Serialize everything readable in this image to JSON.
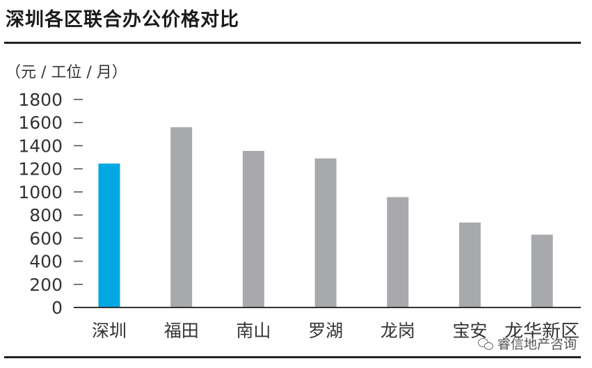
{
  "title": "深圳各区联合办公价格对比",
  "unit": "（元 / 工位 / 月）",
  "watermark": {
    "text": "睿信地产咨询",
    "icon": "wechat-icon"
  },
  "chart_data": {
    "type": "bar",
    "title": "深圳各区联合办公价格对比",
    "ylabel": "（元 / 工位 / 月）",
    "xlabel": "",
    "categories": [
      "深圳",
      "福田",
      "南山",
      "罗湖",
      "龙岗",
      "宝安",
      "龙华新区"
    ],
    "values": [
      1245,
      1560,
      1355,
      1290,
      955,
      735,
      630
    ],
    "ylim": [
      0,
      1800
    ],
    "yticks": [
      0,
      200,
      400,
      600,
      800,
      1000,
      1200,
      1400,
      1600,
      1800
    ],
    "colors": {
      "highlight": "#00a7e1",
      "default": "#a7a9ac"
    },
    "highlight_index": 0,
    "grid": false,
    "legend": "none"
  }
}
